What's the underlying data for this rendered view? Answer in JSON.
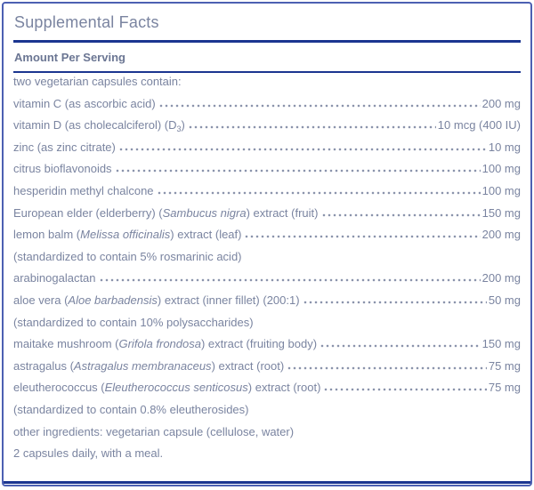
{
  "panel": {
    "title": "Supplemental Facts",
    "serving_header": "Amount Per Serving",
    "colors": {
      "rule_navy": "#1b3590",
      "border_blue": "#4c60b2",
      "text_slate": "#7a84a0",
      "header_slate": "#6b7693",
      "dot_slate": "#8b94ac"
    },
    "rows": [
      {
        "type": "plain",
        "segments": [
          {
            "t": "two vegetarian capsules contain:"
          }
        ]
      },
      {
        "type": "dotted",
        "segments": [
          {
            "t": "vitamin C (as ascorbic acid)"
          }
        ],
        "amount": "200 mg"
      },
      {
        "type": "dotted",
        "segments": [
          {
            "t": "vitamin D (as cholecalciferol) (D"
          },
          {
            "t": "3",
            "style": "sub"
          },
          {
            "t": ")"
          }
        ],
        "amount": "10 mcg (400 IU)"
      },
      {
        "type": "dotted",
        "segments": [
          {
            "t": "zinc (as zinc citrate)"
          }
        ],
        "amount": "10 mg"
      },
      {
        "type": "dotted",
        "segments": [
          {
            "t": "citrus bioflavonoids"
          }
        ],
        "amount": "100 mg"
      },
      {
        "type": "dotted",
        "segments": [
          {
            "t": "hesperidin methyl chalcone"
          }
        ],
        "amount": "100 mg"
      },
      {
        "type": "dotted",
        "segments": [
          {
            "t": "European elder (elderberry) ("
          },
          {
            "t": "Sambucus nigra",
            "style": "italic"
          },
          {
            "t": ") extract (fruit)"
          }
        ],
        "amount": "150 mg"
      },
      {
        "type": "dotted",
        "segments": [
          {
            "t": "lemon balm ("
          },
          {
            "t": "Melissa officinalis",
            "style": "italic"
          },
          {
            "t": ") extract (leaf)"
          }
        ],
        "amount": "200 mg"
      },
      {
        "type": "plain",
        "segments": [
          {
            "t": "(standardized to contain 5% rosmarinic acid)"
          }
        ]
      },
      {
        "type": "dotted",
        "segments": [
          {
            "t": "arabinogalactan"
          }
        ],
        "amount": "200 mg"
      },
      {
        "type": "dotted",
        "segments": [
          {
            "t": "aloe vera ("
          },
          {
            "t": "Aloe barbadensis",
            "style": "italic"
          },
          {
            "t": ") extract (inner fillet) (200:1)"
          }
        ],
        "amount": "50 mg"
      },
      {
        "type": "plain",
        "segments": [
          {
            "t": "(standardized to contain 10% polysaccharides)"
          }
        ]
      },
      {
        "type": "dotted",
        "segments": [
          {
            "t": "maitake mushroom ("
          },
          {
            "t": "Grifola frondosa",
            "style": "italic"
          },
          {
            "t": ") extract (fruiting body)"
          }
        ],
        "amount": "150 mg"
      },
      {
        "type": "dotted",
        "segments": [
          {
            "t": "astragalus ("
          },
          {
            "t": "Astragalus membranaceus",
            "style": "italic"
          },
          {
            "t": ") extract (root)"
          }
        ],
        "amount": "75 mg"
      },
      {
        "type": "dotted",
        "segments": [
          {
            "t": "eleutherococcus ("
          },
          {
            "t": "Eleutherococcus senticosus",
            "style": "italic"
          },
          {
            "t": ") extract (root)"
          }
        ],
        "amount": "75 mg"
      },
      {
        "type": "plain",
        "segments": [
          {
            "t": "(standardized to contain 0.8% eleutherosides)"
          }
        ]
      },
      {
        "type": "plain",
        "segments": [
          {
            "t": "other ingredients: vegetarian capsule (cellulose, water)"
          }
        ]
      },
      {
        "type": "plain",
        "segments": [
          {
            "t": "2 capsules daily, with a meal."
          }
        ]
      }
    ]
  }
}
